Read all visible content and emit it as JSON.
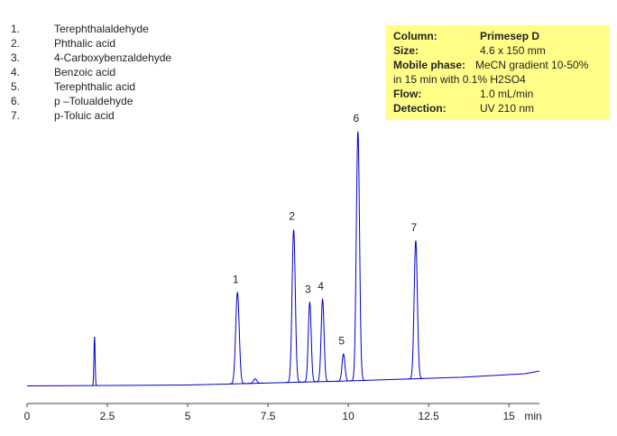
{
  "chart_data": {
    "type": "chromatogram",
    "xlabel": "min",
    "xlim": [
      0,
      15.95
    ],
    "xticks": [
      0,
      2.5,
      5,
      7.5,
      10,
      12.5,
      15
    ],
    "ylim": [
      0,
      300
    ],
    "color": "#0000cc",
    "baseline": {
      "x": [
        0,
        5,
        10,
        13.5,
        15.5,
        15.95
      ],
      "y": [
        0.5,
        1.5,
        6,
        10,
        14,
        17
      ]
    },
    "peaks": [
      {
        "label": "1",
        "time": 6.55,
        "height": 101,
        "sigma": 0.055
      },
      {
        "label": "2",
        "time": 8.3,
        "height": 169,
        "sigma": 0.05
      },
      {
        "label": "3",
        "time": 8.8,
        "height": 88,
        "sigma": 0.045
      },
      {
        "label": "4",
        "time": 9.2,
        "height": 91,
        "sigma": 0.045
      },
      {
        "label": "5",
        "time": 9.85,
        "height": 30,
        "sigma": 0.045
      },
      {
        "label": "6",
        "time": 10.3,
        "height": 276,
        "sigma": 0.05
      },
      {
        "label": "7",
        "time": 12.1,
        "height": 153,
        "sigma": 0.05
      }
    ],
    "minor_peaks": [
      {
        "time": 2.1,
        "height": 54,
        "sigma": 0.018
      },
      {
        "time": 7.1,
        "height": 5,
        "sigma": 0.05
      }
    ],
    "compounds": [
      {
        "number": "1.",
        "name": "Terephthalaldehyde"
      },
      {
        "number": "2.",
        "name": "Phthalic acid"
      },
      {
        "number": "3.",
        "name": "4-Carboxybenzaldehyde"
      },
      {
        "number": "4.",
        "name": "Benzoic acid"
      },
      {
        "number": "5.",
        "name": "Terephthalic acid"
      },
      {
        "number": "6.",
        "name": "p –Tolualdehyde"
      },
      {
        "number": "7.",
        "name": "p-Toluic acid"
      }
    ],
    "conditions": [
      {
        "label": "Column:",
        "value": "Primesep D"
      },
      {
        "label": "Size:",
        "value": "4.6 x 150 mm"
      },
      {
        "label": "Mobile phase:",
        "value": "MeCN gradient 10-50%",
        "continuation": "in 15  min with 0.1% H2SO4"
      },
      {
        "label": "Flow:",
        "value": "1.0 mL/min"
      },
      {
        "label": "Detection:",
        "value": "UV 210 nm"
      }
    ]
  }
}
